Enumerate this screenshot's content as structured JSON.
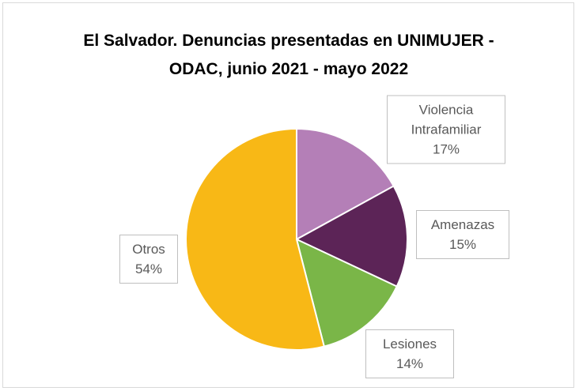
{
  "chart_data": {
    "type": "pie",
    "title": "El Salvador. Denuncias presentadas en UNIMUJER - ODAC, junio 2021 - mayo 2022",
    "categories": [
      "Violencia Intrafamiliar",
      "Amenazas",
      "Lesiones",
      "Otros"
    ],
    "values": [
      17,
      15,
      14,
      54
    ],
    "value_labels": [
      "17%",
      "15%",
      "14%",
      "54%"
    ],
    "colors": [
      "#b47fb7",
      "#5c2457",
      "#7ab648",
      "#f8b816"
    ]
  }
}
